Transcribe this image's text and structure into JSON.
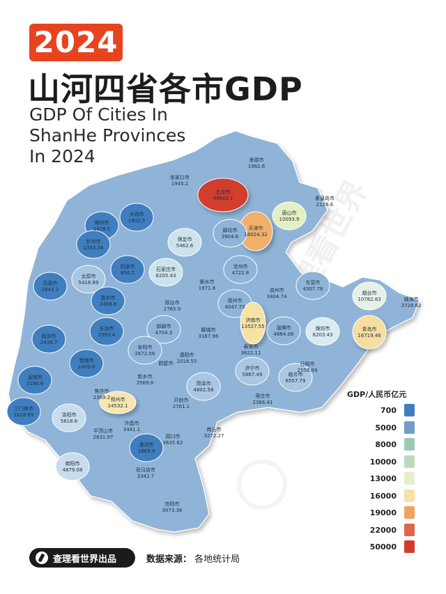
{
  "header": {
    "year": "2024",
    "title_cn": "山河四省各市GDP",
    "title_en": "GDP Of Cities In\nShanHe Provinces\nIn 2024"
  },
  "legend": {
    "title": "GDP/人民币亿元",
    "items": [
      {
        "label": "700",
        "color": "#3f7ebf"
      },
      {
        "label": "5000",
        "color": "#6f9ec8"
      },
      {
        "label": "8000",
        "color": "#9ec8b6"
      },
      {
        "label": "10000",
        "color": "#bcd9b9"
      },
      {
        "label": "13000",
        "color": "#e6efc4"
      },
      {
        "label": "16000",
        "color": "#f6e2a2"
      },
      {
        "label": "19000",
        "color": "#f0a45e"
      },
      {
        "label": "22000",
        "color": "#e2664a"
      },
      {
        "label": "50000",
        "color": "#d23c2e"
      }
    ]
  },
  "cities": [
    {
      "name": "承德市",
      "value": "1962.6"
    },
    {
      "name": "张家口市",
      "value": "1945.2"
    },
    {
      "name": "北京市",
      "value": "49843.1"
    },
    {
      "name": "秦皇岛市",
      "value": "2128.6"
    },
    {
      "name": "大同市",
      "value": "1802.5"
    },
    {
      "name": "唐山市",
      "value": "10093.9"
    },
    {
      "name": "朔州市",
      "value": "1328.5"
    },
    {
      "name": "天津市",
      "value": "18024.32"
    },
    {
      "name": "廊坊市",
      "value": "3904.6"
    },
    {
      "name": "忻州市",
      "value": "1343.38"
    },
    {
      "name": "保定市",
      "value": "5462.6"
    },
    {
      "name": "沧州市",
      "value": "4722.8"
    },
    {
      "name": "阳泉市",
      "value": "856.2"
    },
    {
      "name": "石家庄市",
      "value": "8205.43"
    },
    {
      "name": "东营市",
      "value": "4307.78"
    },
    {
      "name": "太原市",
      "value": "5418.89"
    },
    {
      "name": "吕梁市",
      "value": "2642.2"
    },
    {
      "name": "衡水市",
      "value": "1971.8"
    },
    {
      "name": "滨州市",
      "value": "3404.74"
    },
    {
      "name": "烟台市",
      "value": "10782.83"
    },
    {
      "name": "威海市",
      "value": "3728.62"
    },
    {
      "name": "晋中市",
      "value": "2458.8"
    },
    {
      "name": "邢台市",
      "value": "2765.9"
    },
    {
      "name": "德州市",
      "value": "4047.73"
    },
    {
      "name": "济南市",
      "value": "13527.55"
    },
    {
      "name": "淄博市",
      "value": "4884.08"
    },
    {
      "name": "潍坊市",
      "value": "8203.43"
    },
    {
      "name": "青岛市",
      "value": "16719.46"
    },
    {
      "name": "长治市",
      "value": "2593.4"
    },
    {
      "name": "邯郸市",
      "value": "4704.3"
    },
    {
      "name": "聊城市",
      "value": "3167.96"
    },
    {
      "name": "临汾市",
      "value": "2438.7"
    },
    {
      "name": "安阳市",
      "value": "2672.06"
    },
    {
      "name": "泰安市",
      "value": "3622.11"
    },
    {
      "name": "濮阳市",
      "value": "2018.55"
    },
    {
      "name": "晋城市",
      "value": "2409.8"
    },
    {
      "name": "日照市",
      "value": "2556.89"
    },
    {
      "name": "鹤壁市",
      "value": ""
    },
    {
      "name": "济宁市",
      "value": "5867.49"
    },
    {
      "name": "临沂市",
      "value": "6557.79"
    },
    {
      "name": "运城市",
      "value": "2190.6"
    },
    {
      "name": "焦作市",
      "value": "2369.2"
    },
    {
      "name": "新乡市",
      "value": "3569.8"
    },
    {
      "name": "菏泽市",
      "value": "4802.58"
    },
    {
      "name": "郑州市",
      "value": "14532.1"
    },
    {
      "name": "开封市",
      "value": "2761.1"
    },
    {
      "name": "枣庄市",
      "value": "2386.41"
    },
    {
      "name": "三门峡市",
      "value": "1618.69"
    },
    {
      "name": "洛阳市",
      "value": "5818.6"
    },
    {
      "name": "商丘市",
      "value": "3272.27"
    },
    {
      "name": "许昌市",
      "value": "3441.1"
    },
    {
      "name": "平顶山市",
      "value": "2831.97"
    },
    {
      "name": "周口市",
      "value": "3635.62"
    },
    {
      "name": "漯河市",
      "value": "1869.9"
    },
    {
      "name": "南阳市",
      "value": "4879.08"
    },
    {
      "name": "驻马店市",
      "value": "3342.7"
    },
    {
      "name": "信阳市",
      "value": "3073.36"
    }
  ],
  "watermark": "查理看世界",
  "footer": {
    "brand": "查理看世界出品",
    "source_key": "数据来源：",
    "source_val": "各地统计局"
  }
}
